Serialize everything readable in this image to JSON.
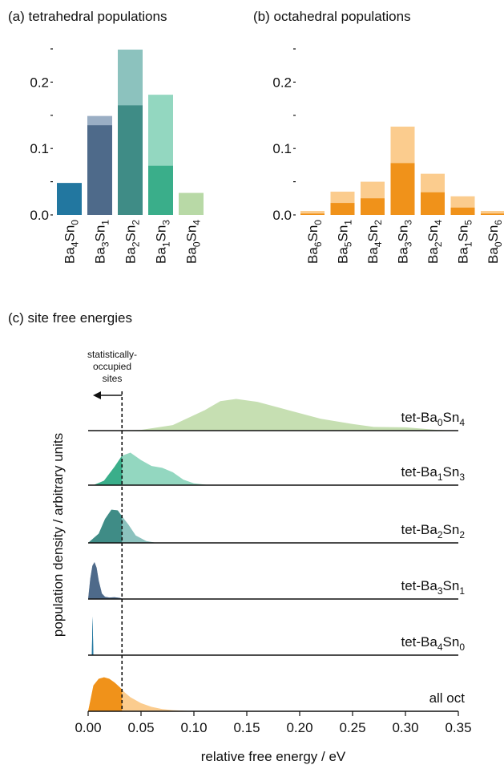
{
  "chart_data": [
    {
      "panel": "a",
      "type": "bar",
      "title": "(a) tetrahedral populations",
      "categories": [
        {
          "ba": "4",
          "sn": "0"
        },
        {
          "ba": "3",
          "sn": "1"
        },
        {
          "ba": "2",
          "sn": "2"
        },
        {
          "ba": "1",
          "sn": "3"
        },
        {
          "ba": "0",
          "sn": "4"
        }
      ],
      "series": [
        {
          "values": [
            0.048,
            0.149,
            0.249,
            0.181,
            0.033
          ],
          "role": "total (light)"
        },
        {
          "values": [
            0.048,
            0.135,
            0.165,
            0.074,
            0.033
          ],
          "role": "statistically-occupied (dark)"
        }
      ],
      "colors_dark": [
        "#2277a0",
        "#4e6a8a",
        "#3f8c86",
        "#3aae8a",
        "#b8d9a6"
      ],
      "colors_light": [
        "#2277a0",
        "#9aaec4",
        "#8cc2be",
        "#93d7c0",
        "#b8d9a6"
      ],
      "yticks": [
        "0.0",
        "0.1",
        "0.2"
      ],
      "ylim": [
        0,
        0.25
      ]
    },
    {
      "panel": "b",
      "type": "bar",
      "title": "(b) octahedral populations",
      "categories": [
        {
          "ba": "6",
          "sn": "0"
        },
        {
          "ba": "5",
          "sn": "1"
        },
        {
          "ba": "4",
          "sn": "2"
        },
        {
          "ba": "3",
          "sn": "3"
        },
        {
          "ba": "2",
          "sn": "4"
        },
        {
          "ba": "1",
          "sn": "5"
        },
        {
          "ba": "0",
          "sn": "6"
        }
      ],
      "series": [
        {
          "values": [
            0.006,
            0.035,
            0.05,
            0.133,
            0.062,
            0.028,
            0.006
          ],
          "role": "total (light)"
        },
        {
          "values": [
            0.002,
            0.018,
            0.025,
            0.078,
            0.034,
            0.011,
            0.002
          ],
          "role": "statistically-occupied (dark)"
        }
      ],
      "color_dark": "#f0921a",
      "color_light": "#fbcc8e",
      "yticks": [
        "0.0",
        "0.1",
        "0.2"
      ],
      "ylim": [
        0,
        0.25
      ]
    },
    {
      "panel": "c",
      "type": "area",
      "title": "(c) site free energies",
      "xlabel": "relative free energy / eV",
      "ylabel": "population density / arbitrary units",
      "xticks": [
        "0.00",
        "0.05",
        "0.10",
        "0.15",
        "0.20",
        "0.25",
        "0.30",
        "0.35"
      ],
      "xlim": [
        0,
        0.35
      ],
      "threshold": 0.032,
      "annotation": "statistically-\noccupied\nsites",
      "rows": [
        {
          "label_prefix": "tet-",
          "ba": "0",
          "sn": "4",
          "color_dark": "#b8d9a6",
          "color_light": "#c6dfb2",
          "x": [
            0.03,
            0.05,
            0.08,
            0.11,
            0.125,
            0.14,
            0.16,
            0.19,
            0.22,
            0.25,
            0.27,
            0.3,
            0.33,
            0.35
          ],
          "y": [
            0.0,
            0.02,
            0.15,
            0.55,
            0.8,
            0.86,
            0.78,
            0.55,
            0.32,
            0.18,
            0.1,
            0.09,
            0.02,
            0.0
          ]
        },
        {
          "label_prefix": "tet-",
          "ba": "1",
          "sn": "3",
          "color_dark": "#3aae8a",
          "color_light": "#93d7c0",
          "x": [
            0.005,
            0.015,
            0.025,
            0.032,
            0.04,
            0.05,
            0.06,
            0.07,
            0.08,
            0.09,
            0.1,
            0.115
          ],
          "y": [
            0.0,
            0.12,
            0.5,
            0.8,
            0.88,
            0.68,
            0.52,
            0.47,
            0.35,
            0.15,
            0.05,
            0.0
          ]
        },
        {
          "label_prefix": "tet-",
          "ba": "2",
          "sn": "2",
          "color_dark": "#3f8c86",
          "color_light": "#8cc2be",
          "x": [
            0.0,
            0.01,
            0.016,
            0.022,
            0.028,
            0.032,
            0.038,
            0.045,
            0.055,
            0.065
          ],
          "y": [
            0.0,
            0.25,
            0.65,
            0.9,
            0.88,
            0.72,
            0.5,
            0.2,
            0.05,
            0.0
          ]
        },
        {
          "label_prefix": "tet-",
          "ba": "3",
          "sn": "1",
          "color_dark": "#4e6a8a",
          "color_light": "#9aaec4",
          "x": [
            0.0,
            0.002,
            0.004,
            0.006,
            0.008,
            0.01,
            0.013,
            0.016,
            0.02,
            0.025,
            0.03,
            0.033
          ],
          "y": [
            0.0,
            0.55,
            0.9,
            1.0,
            0.85,
            0.5,
            0.15,
            0.06,
            0.04,
            0.05,
            0.03,
            0.0
          ]
        },
        {
          "label_prefix": "tet-",
          "ba": "4",
          "sn": "0",
          "color_dark": "#2277a0",
          "color_light": "#2277a0",
          "x": [
            0.0035,
            0.0042,
            0.0049
          ],
          "y": [
            0.0,
            1.05,
            0.0
          ]
        },
        {
          "label_prefix": "all oct",
          "ba": "",
          "sn": "",
          "color_dark": "#f0921a",
          "color_light": "#fbcc8e",
          "x": [
            0.0,
            0.005,
            0.01,
            0.015,
            0.02,
            0.025,
            0.03,
            0.035,
            0.04,
            0.05,
            0.06,
            0.07,
            0.08,
            0.09,
            0.1,
            0.11
          ],
          "y": [
            0.0,
            0.7,
            0.88,
            0.92,
            0.88,
            0.78,
            0.65,
            0.5,
            0.38,
            0.22,
            0.12,
            0.06,
            0.03,
            0.015,
            0.005,
            0.0
          ]
        }
      ]
    }
  ]
}
